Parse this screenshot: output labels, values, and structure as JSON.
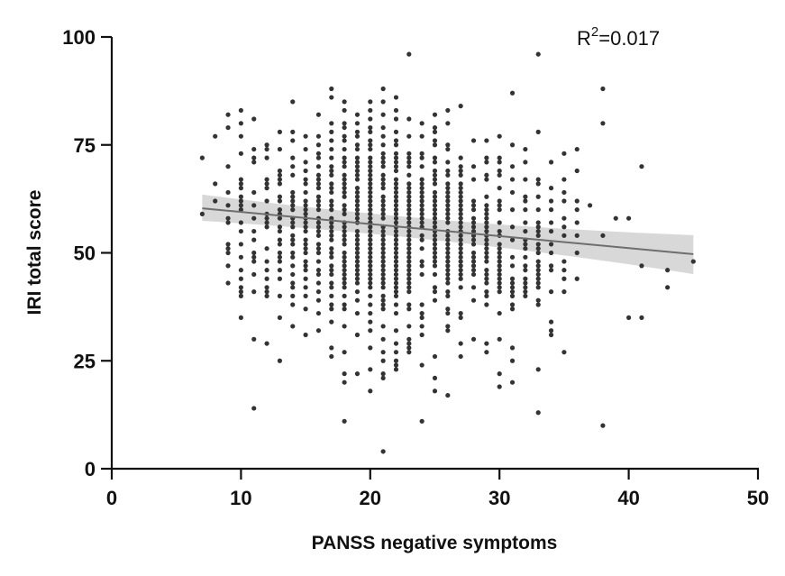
{
  "chart_data": {
    "type": "scatter",
    "title": "",
    "xlabel": "PANSS negative symptoms",
    "ylabel": "IRI total score",
    "xlim": [
      0,
      50
    ],
    "ylim": [
      0,
      100
    ],
    "xticks": [
      0,
      10,
      20,
      30,
      40,
      50
    ],
    "yticks": [
      0,
      25,
      50,
      75,
      100
    ],
    "grid": false,
    "legend": "none",
    "annotation": {
      "base": "R",
      "sup": "2",
      "rest": "=0.017",
      "position": "top-right"
    },
    "colors": {
      "points": "#333333",
      "line": "#6e6e6e",
      "band": "#d4d4d4",
      "axis": "#111111"
    },
    "regression": {
      "x_range": [
        7,
        45
      ],
      "y_at_start": 60.3,
      "y_at_end": 49.7,
      "ci_at_start": [
        57.4,
        63.5
      ],
      "ci_mid": [
        53.6,
        56.6
      ],
      "ci_at_end": [
        45.1,
        54.1
      ]
    },
    "points": [
      {
        "x": 7,
        "y": [
          72,
          59
        ]
      },
      {
        "x": 8,
        "y": [
          77,
          66,
          62
        ]
      },
      {
        "x": 9,
        "y": [
          82,
          79,
          70,
          64,
          61,
          58,
          57,
          52,
          51,
          50,
          47,
          43
        ]
      },
      {
        "x": 10,
        "y": [
          83,
          80,
          77,
          73,
          67,
          66,
          65,
          63,
          62,
          61,
          60,
          57,
          55,
          52,
          49,
          46,
          44,
          42,
          41,
          40,
          35
        ]
      },
      {
        "x": 11,
        "y": [
          81,
          74,
          72,
          71,
          64,
          61,
          58,
          55,
          53,
          50,
          49,
          48,
          45,
          41,
          30,
          14
        ]
      },
      {
        "x": 12,
        "y": [
          75,
          74,
          72,
          67,
          66,
          65,
          62,
          59,
          58,
          57,
          56,
          51,
          48,
          46,
          44,
          42,
          41,
          40,
          29
        ]
      },
      {
        "x": 13,
        "y": [
          78,
          74,
          69,
          68,
          67,
          66,
          63,
          62,
          60,
          59,
          58,
          56,
          55,
          53,
          52,
          50,
          49,
          48,
          46,
          44,
          40,
          35,
          25
        ]
      },
      {
        "x": 14,
        "y": [
          85,
          78,
          76,
          72,
          70,
          68,
          64,
          63,
          62,
          61,
          60,
          58,
          57,
          56,
          54,
          53,
          52,
          50,
          49,
          47,
          45,
          43,
          42,
          40,
          38,
          33
        ]
      },
      {
        "x": 15,
        "y": [
          77,
          74,
          71,
          69,
          67,
          66,
          64,
          62,
          61,
          60,
          59,
          58,
          57,
          56,
          55,
          53,
          52,
          51,
          50,
          48,
          47,
          46,
          44,
          42,
          40,
          37,
          31
        ]
      },
      {
        "x": 16,
        "y": [
          82,
          77,
          75,
          73,
          72,
          70,
          68,
          67,
          66,
          65,
          63,
          62,
          61,
          60,
          58,
          57,
          56,
          55,
          54,
          52,
          51,
          50,
          48,
          46,
          45,
          43,
          41,
          39,
          36,
          32
        ]
      },
      {
        "x": 17,
        "y": [
          88,
          86,
          80,
          78,
          76,
          74,
          72,
          70,
          69,
          68,
          66,
          65,
          64,
          62,
          61,
          60,
          58,
          57,
          56,
          55,
          54,
          53,
          51,
          50,
          49,
          47,
          46,
          45,
          43,
          42,
          40,
          38,
          37,
          34,
          28,
          26
        ]
      },
      {
        "x": 18,
        "y": [
          85,
          83,
          80,
          79,
          77,
          76,
          74,
          72,
          71,
          70,
          68,
          67,
          66,
          65,
          64,
          63,
          61,
          60,
          59,
          57,
          56,
          55,
          54,
          53,
          52,
          50,
          49,
          48,
          47,
          46,
          45,
          44,
          43,
          42,
          40,
          38,
          37,
          33,
          27,
          22,
          20,
          11
        ]
      },
      {
        "x": 19,
        "y": [
          82,
          80,
          78,
          77,
          75,
          74,
          72,
          71,
          70,
          69,
          68,
          67,
          65,
          64,
          63,
          62,
          61,
          60,
          59,
          58,
          57,
          55,
          54,
          53,
          52,
          51,
          50,
          49,
          48,
          47,
          46,
          45,
          44,
          43,
          41,
          39,
          36,
          31,
          22
        ]
      },
      {
        "x": 20,
        "y": [
          85,
          83,
          81,
          79,
          78,
          76,
          75,
          74,
          72,
          71,
          70,
          69,
          68,
          67,
          66,
          65,
          64,
          63,
          62,
          61,
          60,
          59,
          58,
          57,
          56,
          55,
          54,
          53,
          52,
          51,
          50,
          49,
          48,
          47,
          46,
          45,
          44,
          43,
          42,
          40,
          38,
          36,
          34,
          32,
          28,
          23,
          18
        ]
      },
      {
        "x": 21,
        "y": [
          88,
          85,
          82,
          79,
          77,
          75,
          73,
          72,
          71,
          70,
          68,
          67,
          66,
          65,
          63,
          62,
          61,
          60,
          59,
          58,
          56,
          55,
          54,
          53,
          52,
          51,
          50,
          49,
          48,
          47,
          46,
          45,
          44,
          43,
          42,
          40,
          39,
          38,
          37,
          33,
          30,
          27,
          25,
          22,
          21,
          4
        ]
      },
      {
        "x": 22,
        "y": [
          86,
          83,
          81,
          78,
          76,
          75,
          73,
          72,
          71,
          70,
          69,
          67,
          66,
          65,
          64,
          63,
          62,
          61,
          60,
          59,
          58,
          57,
          56,
          55,
          54,
          53,
          52,
          51,
          50,
          49,
          48,
          47,
          46,
          45,
          44,
          43,
          42,
          41,
          40,
          38,
          36,
          32,
          29,
          27,
          25,
          24,
          23
        ]
      },
      {
        "x": 23,
        "y": [
          96,
          81,
          77,
          73,
          72,
          71,
          70,
          68,
          66,
          65,
          64,
          63,
          62,
          61,
          60,
          59,
          58,
          57,
          56,
          55,
          54,
          53,
          52,
          51,
          50,
          49,
          48,
          47,
          46,
          45,
          44,
          43,
          42,
          41,
          38,
          37,
          33,
          30,
          29,
          28,
          27
        ]
      },
      {
        "x": 24,
        "y": [
          80,
          77,
          73,
          72,
          70,
          67,
          66,
          65,
          64,
          63,
          62,
          61,
          60,
          59,
          58,
          57,
          56,
          54,
          53,
          51,
          48,
          47,
          45,
          38,
          36,
          35,
          33,
          31,
          24,
          11
        ]
      },
      {
        "x": 25,
        "y": [
          82,
          79,
          78,
          76,
          75,
          72,
          71,
          69,
          68,
          67,
          66,
          64,
          63,
          62,
          61,
          60,
          59,
          58,
          57,
          56,
          55,
          54,
          53,
          52,
          51,
          50,
          49,
          48,
          47,
          45,
          42,
          41,
          39,
          26,
          21,
          18
        ]
      },
      {
        "x": 26,
        "y": [
          83,
          80,
          75,
          74,
          71,
          69,
          68,
          66,
          65,
          64,
          63,
          62,
          61,
          60,
          59,
          58,
          57,
          55,
          54,
          53,
          52,
          51,
          50,
          49,
          48,
          47,
          46,
          45,
          44,
          43,
          41,
          40,
          37,
          36,
          33,
          32,
          17
        ]
      },
      {
        "x": 27,
        "y": [
          84,
          72,
          70,
          69,
          68,
          66,
          65,
          64,
          63,
          62,
          61,
          60,
          59,
          58,
          57,
          56,
          55,
          54,
          53,
          52,
          51,
          50,
          49,
          48,
          47,
          46,
          45,
          44,
          42,
          36,
          35,
          29,
          26
        ]
      },
      {
        "x": 28,
        "y": [
          76,
          70,
          67,
          62,
          61,
          60,
          58,
          57,
          56,
          55,
          54,
          53,
          52,
          50,
          49,
          48,
          47,
          46,
          45,
          42,
          39,
          30
        ]
      },
      {
        "x": 29,
        "y": [
          76,
          72,
          71,
          68,
          67,
          63,
          61,
          60,
          59,
          58,
          57,
          56,
          55,
          54,
          53,
          52,
          51,
          50,
          49,
          48,
          46,
          45,
          44,
          43,
          41,
          40,
          38,
          29,
          27
        ]
      },
      {
        "x": 30,
        "y": [
          77,
          72,
          71,
          69,
          68,
          65,
          62,
          61,
          60,
          57,
          55,
          54,
          52,
          51,
          50,
          49,
          48,
          47,
          46,
          45,
          44,
          43,
          42,
          41,
          36,
          30,
          22,
          19
        ]
      },
      {
        "x": 31,
        "y": [
          87,
          75,
          70,
          67,
          64,
          60,
          56,
          53,
          49,
          47,
          44,
          43,
          42,
          41,
          40,
          38,
          37,
          28,
          25,
          20
        ]
      },
      {
        "x": 32,
        "y": [
          74,
          71,
          67,
          63,
          62,
          60,
          57,
          55,
          53,
          52,
          51,
          49,
          47,
          46,
          44,
          43,
          42,
          41,
          40
        ]
      },
      {
        "x": 33,
        "y": [
          96,
          78,
          67,
          66,
          63,
          60,
          57,
          56,
          55,
          54,
          52,
          51,
          50,
          48,
          47,
          46,
          45,
          44,
          43,
          42,
          39,
          38,
          23,
          13
        ]
      },
      {
        "x": 34,
        "y": [
          71,
          65,
          62,
          60,
          57,
          55,
          52,
          50,
          47,
          46,
          41,
          34,
          32,
          31
        ]
      },
      {
        "x": 35,
        "y": [
          73,
          67,
          64,
          62,
          58,
          56,
          54,
          48,
          46,
          44,
          41,
          27
        ]
      },
      {
        "x": 36,
        "y": [
          74,
          69,
          62,
          60,
          57,
          54,
          50,
          44
        ]
      },
      {
        "x": 37,
        "y": [
          61
        ]
      },
      {
        "x": 38,
        "y": [
          88,
          80,
          54,
          10
        ]
      },
      {
        "x": 39,
        "y": [
          58
        ]
      },
      {
        "x": 40,
        "y": [
          58,
          35
        ]
      },
      {
        "x": 41,
        "y": [
          70,
          47,
          35
        ]
      },
      {
        "x": 43,
        "y": [
          46,
          42
        ]
      },
      {
        "x": 45,
        "y": [
          48
        ]
      }
    ]
  }
}
